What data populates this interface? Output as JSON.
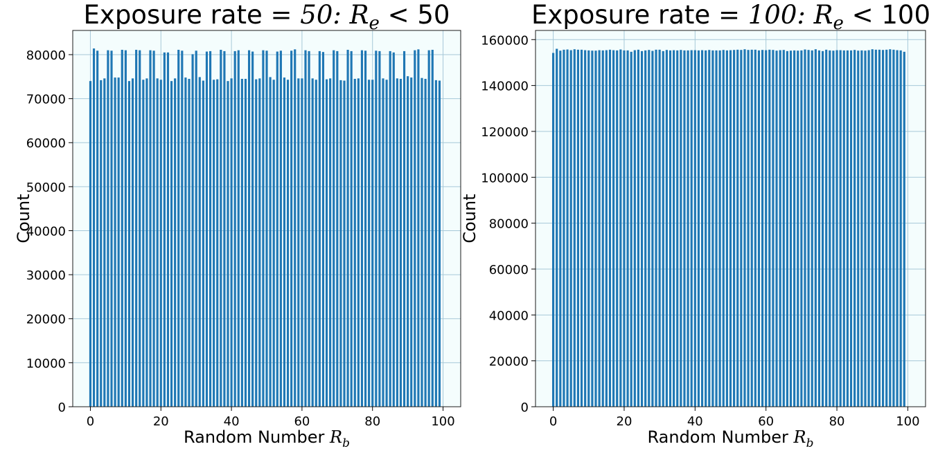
{
  "chart_data": [
    {
      "type": "bar",
      "title_prefix": "Exposure rate ",
      "title_math": "= 50: R",
      "title_sub": "e",
      "title_suffix": " < 50",
      "xlabel_prefix": "Random Number ",
      "xlabel_math": "R",
      "xlabel_sub": "b",
      "ylabel": "Count",
      "xlim": [
        -5,
        105
      ],
      "ylim": [
        0,
        85500
      ],
      "xticks": [
        0,
        20,
        40,
        60,
        80,
        100
      ],
      "yticks": [
        0,
        10000,
        20000,
        30000,
        40000,
        50000,
        60000,
        70000,
        80000
      ],
      "grid": true,
      "bar_color": "#1f77b4",
      "background_color": "#f4fdfd",
      "x": [
        0,
        1,
        2,
        3,
        4,
        5,
        6,
        7,
        8,
        9,
        10,
        11,
        12,
        13,
        14,
        15,
        16,
        17,
        18,
        19,
        20,
        21,
        22,
        23,
        24,
        25,
        26,
        27,
        28,
        29,
        30,
        31,
        32,
        33,
        34,
        35,
        36,
        37,
        38,
        39,
        40,
        41,
        42,
        43,
        44,
        45,
        46,
        47,
        48,
        49,
        50,
        51,
        52,
        53,
        54,
        55,
        56,
        57,
        58,
        59,
        60,
        61,
        62,
        63,
        64,
        65,
        66,
        67,
        68,
        69,
        70,
        71,
        72,
        73,
        74,
        75,
        76,
        77,
        78,
        79,
        80,
        81,
        82,
        83,
        84,
        85,
        86,
        87,
        88,
        89,
        90,
        91,
        92,
        93,
        94,
        95,
        96,
        97,
        98,
        99
      ],
      "values": [
        74000,
        81400,
        80900,
        74200,
        74600,
        81000,
        80900,
        74800,
        74800,
        81100,
        81000,
        74000,
        74600,
        81100,
        81000,
        74300,
        74600,
        81000,
        80900,
        74600,
        74300,
        80500,
        80500,
        74000,
        74600,
        81100,
        80900,
        74800,
        74500,
        80100,
        80900,
        74900,
        74100,
        80700,
        80800,
        74300,
        74400,
        81100,
        80800,
        74000,
        74600,
        80800,
        81000,
        74500,
        74500,
        81000,
        80700,
        74400,
        74600,
        81000,
        80900,
        74900,
        74300,
        80700,
        80900,
        74800,
        74300,
        80900,
        81200,
        74600,
        74600,
        81000,
        80800,
        74600,
        74300,
        80800,
        80600,
        74400,
        74600,
        81000,
        80800,
        74200,
        74100,
        81100,
        80800,
        74500,
        74600,
        81000,
        80900,
        74300,
        74300,
        80900,
        80800,
        74600,
        74300,
        80800,
        80500,
        74600,
        74500,
        80800,
        75100,
        74800,
        81000,
        81200,
        74700,
        74500,
        81000,
        81100,
        74200,
        74100
      ]
    },
    {
      "type": "bar",
      "title_prefix": "Exposure rate ",
      "title_math": "= 100: R",
      "title_sub": "e",
      "title_suffix": " < 100",
      "xlabel_prefix": "Random Number ",
      "xlabel_math": "R",
      "xlabel_sub": "b",
      "ylabel": "Count",
      "xlim": [
        -5,
        105
      ],
      "ylim": [
        0,
        164000
      ],
      "xticks": [
        0,
        20,
        40,
        60,
        80,
        100
      ],
      "yticks": [
        0,
        20000,
        40000,
        60000,
        80000,
        100000,
        120000,
        140000,
        160000
      ],
      "grid": true,
      "bar_color": "#1f77b4",
      "background_color": "#f4fdfd",
      "x": [
        0,
        1,
        2,
        3,
        4,
        5,
        6,
        7,
        8,
        9,
        10,
        11,
        12,
        13,
        14,
        15,
        16,
        17,
        18,
        19,
        20,
        21,
        22,
        23,
        24,
        25,
        26,
        27,
        28,
        29,
        30,
        31,
        32,
        33,
        34,
        35,
        36,
        37,
        38,
        39,
        40,
        41,
        42,
        43,
        44,
        45,
        46,
        47,
        48,
        49,
        50,
        51,
        52,
        53,
        54,
        55,
        56,
        57,
        58,
        59,
        60,
        61,
        62,
        63,
        64,
        65,
        66,
        67,
        68,
        69,
        70,
        71,
        72,
        73,
        74,
        75,
        76,
        77,
        78,
        79,
        80,
        81,
        82,
        83,
        84,
        85,
        86,
        87,
        88,
        89,
        90,
        91,
        92,
        93,
        94,
        95,
        96,
        97,
        98,
        99
      ],
      "values": [
        154200,
        156000,
        155200,
        155600,
        155700,
        155400,
        155800,
        155600,
        155600,
        155400,
        155300,
        155200,
        155200,
        155400,
        155300,
        155400,
        155600,
        155400,
        155300,
        155700,
        155300,
        155300,
        154700,
        155400,
        155600,
        155000,
        155300,
        155500,
        155100,
        155600,
        155600,
        155000,
        155500,
        155300,
        155400,
        155300,
        155500,
        155300,
        155300,
        155400,
        155400,
        155300,
        155400,
        155300,
        155500,
        155300,
        155300,
        155300,
        155500,
        155300,
        155400,
        155500,
        155600,
        155500,
        155800,
        155500,
        155600,
        155600,
        155300,
        155500,
        155400,
        155600,
        155500,
        155200,
        155400,
        155500,
        155000,
        155200,
        155300,
        155200,
        155300,
        155700,
        155500,
        155300,
        155800,
        155300,
        155000,
        155600,
        155300,
        155200,
        155400,
        155400,
        155300,
        155300,
        155300,
        155500,
        155200,
        155300,
        155200,
        155400,
        155800,
        155600,
        155600,
        155500,
        155600,
        155800,
        155600,
        155400,
        155300,
        154700
      ]
    }
  ]
}
